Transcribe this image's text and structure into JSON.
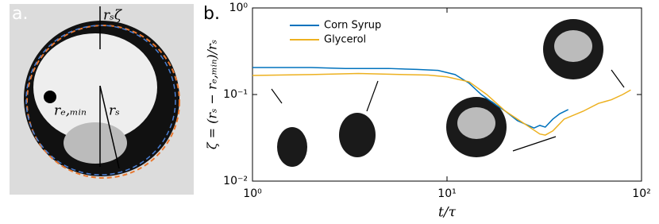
{
  "panel_a": {
    "label": "a.",
    "annotations": [
      "rₛζ",
      "rₑ,ₘᵢₙ",
      "rₛ"
    ]
  },
  "chart_data": {
    "type": "line",
    "panel_label": "b.",
    "x_label": "t/τ",
    "y_label": "ζ = (rₛ − rₑ,ₘᵢₙ)/rₛ",
    "xscale": "log",
    "yscale": "log",
    "grid": false,
    "legend": "upper left",
    "xlim": [
      1,
      100
    ],
    "ylim": [
      0.01,
      1
    ],
    "xticks": [
      {
        "value": 1,
        "label": "10⁰"
      },
      {
        "value": 10,
        "label": "10¹"
      },
      {
        "value": 100,
        "label": "10²"
      }
    ],
    "yticks": [
      {
        "value": 0.01,
        "label": "10⁻²"
      },
      {
        "value": 0.1,
        "label": "10⁻¹"
      },
      {
        "value": 1,
        "label": "10⁰"
      }
    ],
    "series": [
      {
        "name": "Corn Syrup",
        "color": "#0072BD",
        "x": [
          1,
          2,
          3,
          5,
          7,
          9,
          11,
          13,
          15,
          18,
          20,
          23,
          25,
          28,
          30,
          32,
          35,
          38,
          42
        ],
        "values": [
          0.205,
          0.205,
          0.2,
          0.2,
          0.195,
          0.19,
          0.17,
          0.135,
          0.1,
          0.075,
          0.064,
          0.05,
          0.046,
          0.041,
          0.044,
          0.042,
          0.052,
          0.06,
          0.067
        ]
      },
      {
        "name": "Glycerol",
        "color": "#EDB120",
        "x": [
          1,
          2,
          3.5,
          6,
          8,
          10,
          13,
          16,
          20,
          25,
          30,
          32,
          35,
          40,
          50,
          60,
          70,
          80,
          88
        ],
        "values": [
          0.166,
          0.17,
          0.175,
          0.17,
          0.168,
          0.16,
          0.14,
          0.1,
          0.064,
          0.046,
          0.035,
          0.034,
          0.038,
          0.052,
          0.064,
          0.079,
          0.087,
          0.1,
          0.113
        ]
      }
    ]
  }
}
